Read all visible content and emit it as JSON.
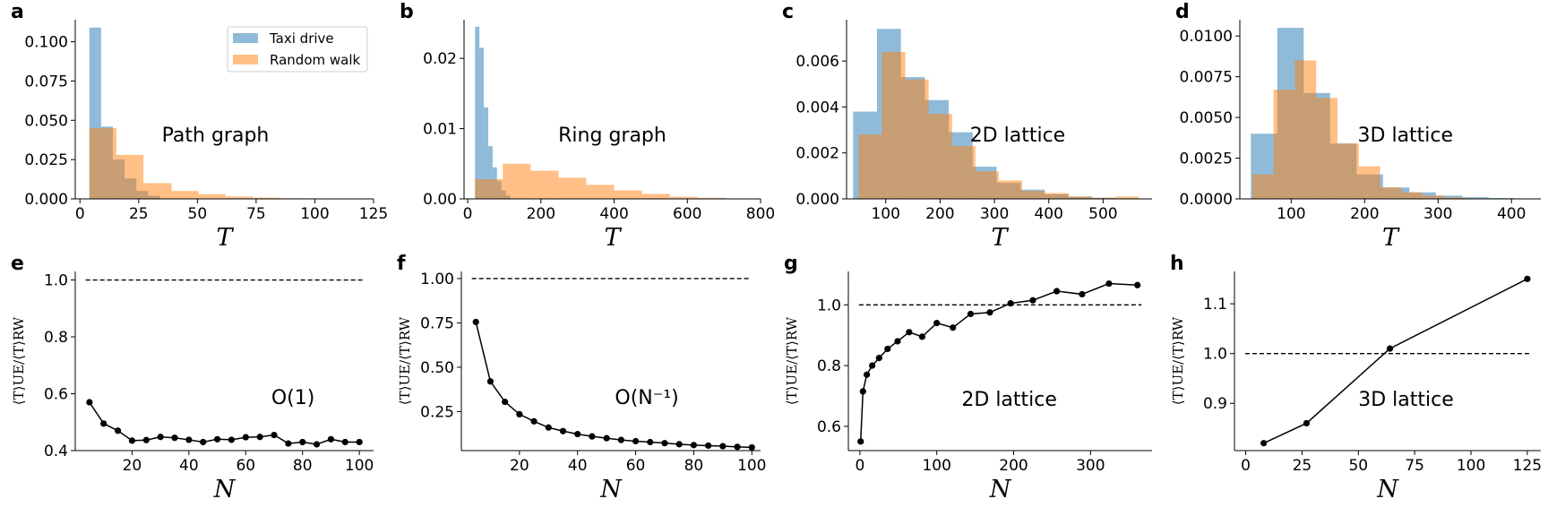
{
  "colors": {
    "taxi": "#1f77b4",
    "random": "#ff7f0e",
    "line": "#000000"
  },
  "legend": {
    "taxi": "Taxi drive",
    "random": "Random walk"
  },
  "chart_data": [
    {
      "panel": "a",
      "type": "bar",
      "annotation": "Path graph",
      "xlabel": "T",
      "ylabel": "",
      "xlim": [
        -2,
        125
      ],
      "ylim": [
        0,
        0.114
      ],
      "xticks": [
        0,
        25,
        50,
        75,
        100,
        125
      ],
      "yticks": [
        0.0,
        0.025,
        0.05,
        0.075,
        0.1
      ],
      "yticklabels": [
        "0.000",
        "0.025",
        "0.050",
        "0.075",
        "0.100"
      ],
      "series": [
        {
          "name": "Taxi drive",
          "edges": [
            4,
            9,
            14,
            19,
            24,
            29,
            34
          ],
          "values": [
            0.109,
            0.046,
            0.025,
            0.013,
            0.005,
            0.002
          ]
        },
        {
          "name": "Random walk",
          "edges": [
            4,
            15.5,
            27,
            39,
            50.5,
            62,
            73.5,
            85,
            96.5,
            108,
            119.5
          ],
          "values": [
            0.045,
            0.028,
            0.01,
            0.005,
            0.003,
            0.0015,
            0.0008,
            0.0004,
            0.0002,
            0.0001
          ]
        }
      ]
    },
    {
      "panel": "b",
      "type": "bar",
      "annotation": "Ring graph",
      "xlabel": "T",
      "ylabel": "",
      "xlim": [
        -10,
        800
      ],
      "ylim": [
        0,
        0.0255
      ],
      "xticks": [
        0,
        200,
        400,
        600,
        800
      ],
      "yticks": [
        0.0,
        0.01,
        0.02
      ],
      "yticklabels": [
        "0.00",
        "0.01",
        "0.02"
      ],
      "series": [
        {
          "name": "Taxi drive",
          "edges": [
            20,
            32,
            44,
            56,
            68,
            80,
            92,
            104,
            116
          ],
          "values": [
            0.0245,
            0.0215,
            0.013,
            0.0075,
            0.0045,
            0.0025,
            0.0012,
            0.0005
          ]
        },
        {
          "name": "Random walk",
          "edges": [
            20,
            96,
            172,
            248,
            324,
            400,
            476,
            552,
            628,
            704,
            780
          ],
          "values": [
            0.0028,
            0.005,
            0.004,
            0.003,
            0.002,
            0.0012,
            0.0007,
            0.0003,
            0.00015,
            5e-05
          ]
        }
      ]
    },
    {
      "panel": "c",
      "type": "bar",
      "annotation": "2D lattice",
      "xlabel": "T",
      "ylabel": "",
      "xlim": [
        28,
        590
      ],
      "ylim": [
        0,
        0.0078
      ],
      "xticks": [
        100,
        200,
        300,
        400,
        500
      ],
      "yticks": [
        0.0,
        0.002,
        0.004,
        0.006
      ],
      "yticklabels": [
        "0.000",
        "0.002",
        "0.004",
        "0.006"
      ],
      "series": [
        {
          "name": "Taxi drive",
          "edges": [
            40,
            84,
            128,
            172,
            216,
            260,
            304,
            348,
            392,
            436,
            480,
            524,
            568
          ],
          "values": [
            0.0038,
            0.0074,
            0.0053,
            0.0043,
            0.0029,
            0.0014,
            0.0007,
            0.0004,
            0.0002,
            0.0001,
            5e-05,
            2e-05
          ]
        },
        {
          "name": "Random walk",
          "edges": [
            50,
            93,
            136,
            179,
            222,
            265,
            308,
            351,
            394,
            437,
            480,
            523,
            566
          ],
          "values": [
            0.0028,
            0.0064,
            0.0052,
            0.0037,
            0.0023,
            0.0012,
            0.0008,
            0.00035,
            0.00025,
            0.0001,
            5e-05,
            0.0001
          ]
        }
      ]
    },
    {
      "panel": "d",
      "type": "bar",
      "annotation": "3D lattice",
      "xlabel": "T",
      "ylabel": "",
      "xlim": [
        30,
        440
      ],
      "ylim": [
        0,
        0.011
      ],
      "xticks": [
        100,
        200,
        300,
        400
      ],
      "yticks": [
        0.0,
        0.0025,
        0.005,
        0.0075,
        0.01
      ],
      "yticklabels": [
        "0.0000",
        "0.0025",
        "0.0050",
        "0.0075",
        "0.0100"
      ],
      "series": [
        {
          "name": "Taxi drive",
          "edges": [
            45,
            81,
            117,
            153,
            189,
            225,
            261,
            297,
            333,
            369,
            405
          ],
          "values": [
            0.004,
            0.0105,
            0.0065,
            0.0034,
            0.0015,
            0.0007,
            0.0004,
            0.0002,
            0.0001,
            5e-05
          ]
        },
        {
          "name": "Random walk",
          "edges": [
            47,
            76,
            105,
            134,
            163,
            192,
            221,
            250,
            279,
            308,
            337
          ],
          "values": [
            0.0015,
            0.0067,
            0.0085,
            0.0062,
            0.0034,
            0.002,
            0.0007,
            0.0004,
            0.0002,
            0.0001
          ]
        }
      ]
    },
    {
      "panel": "e",
      "type": "line",
      "annotation": "O(1)",
      "xlabel": "N",
      "ylabel": "⟨T⟩UE/⟨T⟩RW",
      "xlim": [
        0,
        105
      ],
      "ylim": [
        0.4,
        1.03
      ],
      "reference": 1.0,
      "xticks": [
        20,
        40,
        60,
        80,
        100
      ],
      "yticks": [
        0.4,
        0.6,
        0.8,
        1.0
      ],
      "yticklabels": [
        "0.4",
        "0.6",
        "0.8",
        "1.0"
      ],
      "x": [
        5,
        10,
        15,
        20,
        25,
        30,
        35,
        40,
        45,
        50,
        55,
        60,
        65,
        70,
        75,
        80,
        85,
        90,
        95,
        100
      ],
      "y": [
        0.57,
        0.495,
        0.47,
        0.435,
        0.437,
        0.448,
        0.445,
        0.438,
        0.43,
        0.44,
        0.438,
        0.447,
        0.448,
        0.455,
        0.425,
        0.43,
        0.422,
        0.44,
        0.43,
        0.43
      ]
    },
    {
      "panel": "f",
      "type": "line",
      "annotation": "O(N⁻¹)",
      "xlabel": "N",
      "ylabel": "⟨T⟩UE/⟨T⟩RW",
      "xlim": [
        0,
        103
      ],
      "ylim": [
        0.03,
        1.04
      ],
      "reference": 1.0,
      "xticks": [
        20,
        40,
        60,
        80,
        100
      ],
      "yticks": [
        0.25,
        0.5,
        0.75,
        1.0
      ],
      "yticklabels": [
        "0.25",
        "0.50",
        "0.75",
        "1.00"
      ],
      "x": [
        5,
        10,
        15,
        20,
        25,
        30,
        35,
        40,
        45,
        50,
        55,
        60,
        65,
        70,
        75,
        80,
        85,
        90,
        95,
        100
      ],
      "y": [
        0.755,
        0.42,
        0.305,
        0.235,
        0.195,
        0.16,
        0.14,
        0.123,
        0.11,
        0.1,
        0.09,
        0.083,
        0.078,
        0.072,
        0.066,
        0.061,
        0.058,
        0.055,
        0.051,
        0.048
      ]
    },
    {
      "panel": "g",
      "type": "line",
      "annotation": "2D lattice",
      "xlabel": "N",
      "ylabel": "⟨T⟩UE/⟨T⟩RW",
      "xlim": [
        -15,
        380
      ],
      "ylim": [
        0.52,
        1.11
      ],
      "reference": 1.0,
      "xticks": [
        0,
        100,
        200,
        300
      ],
      "yticks": [
        0.6,
        0.8,
        1.0
      ],
      "yticklabels": [
        "0.6",
        "0.8",
        "1.0"
      ],
      "x": [
        1,
        4,
        9,
        16,
        25,
        36,
        49,
        64,
        81,
        100,
        121,
        144,
        169,
        196,
        225,
        256,
        289,
        324,
        361
      ],
      "y": [
        0.55,
        0.715,
        0.77,
        0.8,
        0.825,
        0.855,
        0.88,
        0.91,
        0.895,
        0.94,
        0.925,
        0.97,
        0.975,
        1.005,
        1.015,
        1.045,
        1.035,
        1.07,
        1.065
      ]
    },
    {
      "panel": "h",
      "type": "line",
      "annotation": "3D lattice",
      "xlabel": "N",
      "ylabel": "⟨T⟩UE/⟨T⟩RW",
      "xlim": [
        -5,
        131
      ],
      "ylim": [
        0.805,
        1.165
      ],
      "reference": 1.0,
      "xticks": [
        0,
        25,
        50,
        75,
        100,
        125
      ],
      "yticks": [
        0.9,
        1.0,
        1.1
      ],
      "yticklabels": [
        "0.9",
        "1.0",
        "1.1"
      ],
      "x": [
        8,
        27,
        64,
        125
      ],
      "y": [
        0.82,
        0.86,
        1.01,
        1.15
      ]
    }
  ]
}
